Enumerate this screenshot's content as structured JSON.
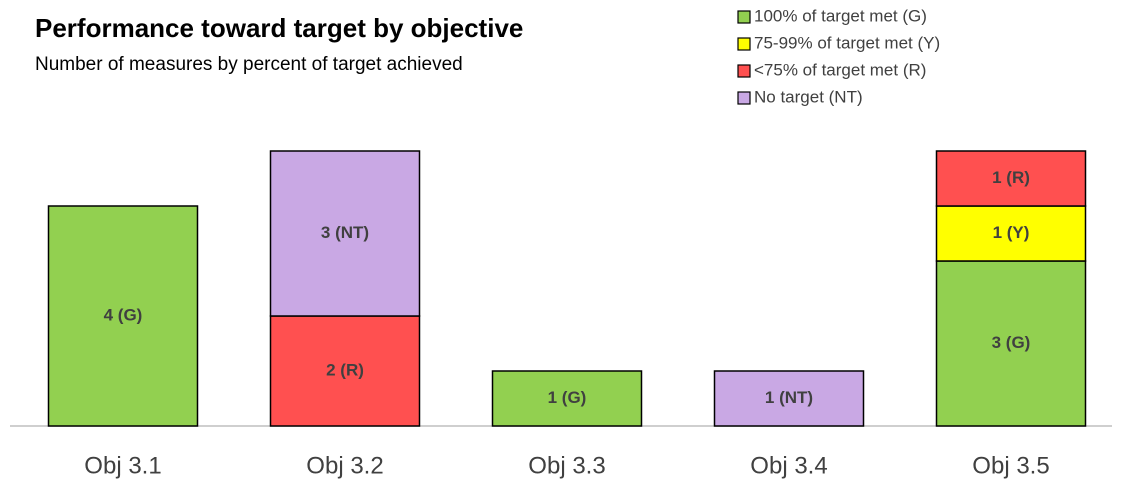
{
  "chart_data": {
    "type": "stacked_bar",
    "title": "Performance toward target by objective",
    "subtitle": "Number of measures by percent of target achieved",
    "categories": [
      "Obj 3.1",
      "Obj 3.2",
      "Obj 3.3",
      "Obj 3.4",
      "Obj 3.5"
    ],
    "series": [
      {
        "name": "100% of target met (G)",
        "color": "#92d050",
        "values": [
          4,
          null,
          1,
          null,
          3
        ],
        "value_labels": [
          "4 (G)",
          null,
          "1 (G)",
          null,
          "3 (G)"
        ]
      },
      {
        "name": "75-99% of target met (Y)",
        "color": "#ffff00",
        "values": [
          null,
          null,
          null,
          null,
          1
        ],
        "value_labels": [
          null,
          null,
          null,
          null,
          "1 (Y)"
        ]
      },
      {
        "name": "<75% of target met (R)",
        "color": "#ff5050",
        "values": [
          null,
          2,
          null,
          null,
          1
        ],
        "value_labels": [
          null,
          "2 (R)",
          null,
          null,
          "1 (R)"
        ]
      },
      {
        "name": "No target (NT)",
        "color": "#c9a8e4",
        "values": [
          null,
          3,
          null,
          1,
          null
        ],
        "value_labels": [
          null,
          "3 (NT)",
          null,
          "1 (NT)",
          null
        ]
      }
    ],
    "legend": "top-right"
  }
}
